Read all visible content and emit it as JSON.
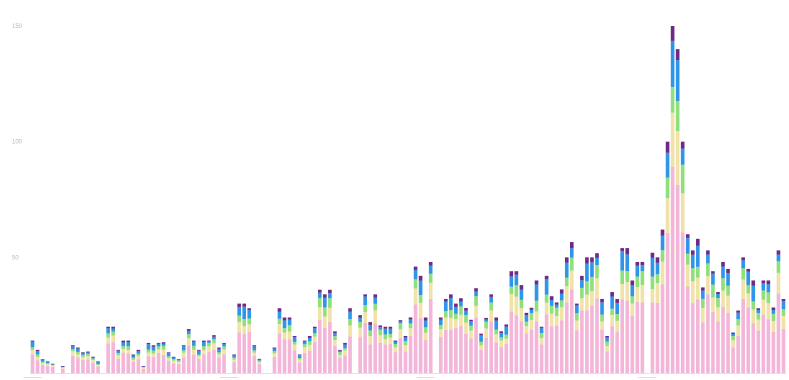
{
  "chart_data": {
    "type": "bar",
    "stacked": true,
    "title": "",
    "xlabel": "",
    "ylabel": "",
    "grid": false,
    "legend": "none",
    "ylim": [
      0,
      150
    ],
    "y_ticks": [
      {
        "value": 50,
        "label": "50"
      },
      {
        "value": 100,
        "label": "100"
      },
      {
        "value": 150,
        "label": "150"
      }
    ],
    "x_tick_labels": [
      {
        "index": 0,
        "label": "———"
      },
      {
        "index": 39,
        "label": "———"
      },
      {
        "index": 78,
        "label": "———"
      },
      {
        "index": 122,
        "label": "———"
      }
    ],
    "series": [
      {
        "name": "",
        "color": "#f3b6d8"
      },
      {
        "name": "",
        "color": "#f1e2a8"
      },
      {
        "name": "",
        "color": "#8fe07a"
      },
      {
        "name": "",
        "color": "#2f95e8"
      },
      {
        "name": "",
        "color": "#6f2a86"
      }
    ],
    "totals": [
      14,
      10,
      6,
      5,
      4,
      0,
      3,
      0,
      12,
      11,
      9,
      9,
      7,
      5,
      0,
      20,
      20,
      10,
      14,
      14,
      8,
      10,
      3,
      13,
      12,
      13,
      13,
      9,
      7,
      6,
      12,
      19,
      14,
      10,
      14,
      14,
      16,
      11,
      13,
      0,
      8,
      30,
      30,
      28,
      12,
      6,
      0,
      0,
      11,
      28,
      24,
      24,
      16,
      8,
      14,
      16,
      20,
      36,
      34,
      34,
      18,
      10,
      13,
      28,
      0,
      25,
      34,
      22,
      34,
      20,
      20,
      20,
      14,
      22,
      16,
      24,
      46,
      42,
      24,
      48,
      0,
      24,
      32,
      34,
      30,
      32,
      28,
      23,
      36,
      17,
      23,
      34,
      24,
      18,
      21,
      44,
      44,
      38,
      26,
      28,
      40,
      20,
      42,
      32,
      30,
      36,
      50,
      56,
      30,
      42,
      50,
      50,
      50,
      32,
      16,
      35,
      32,
      54,
      54,
      40,
      48,
      48,
      0,
      52,
      50,
      62,
      100,
      150,
      140,
      100,
      60,
      53,
      58,
      37,
      53,
      44,
      35,
      48,
      45,
      17,
      27,
      50,
      45,
      40,
      28,
      40,
      40,
      28,
      53,
      32
    ]
  }
}
